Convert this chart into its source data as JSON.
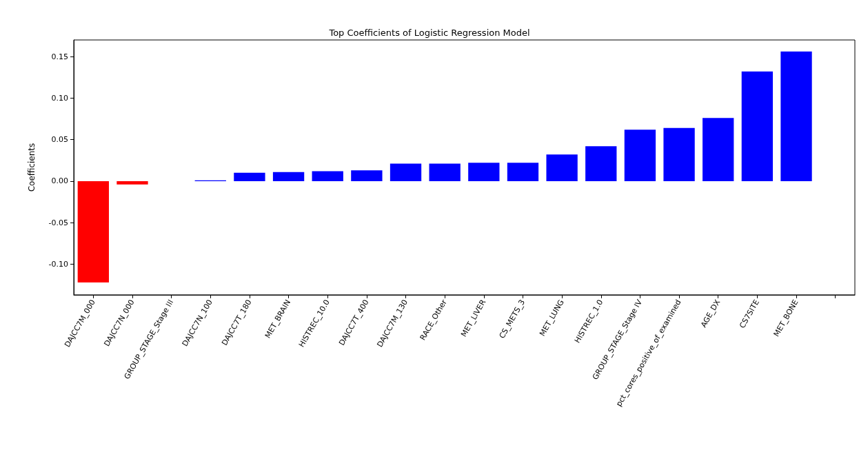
{
  "chart_data": {
    "type": "bar",
    "title": "Top Coefficients of Logistic Regression Model",
    "ylabel": "Coefficients",
    "categories": [
      "DAJCC7M_000",
      "DAJCC7N_000",
      "GROUP_STAGE_Stage III",
      "DAJCC7N_100",
      "DAJCC7T_180",
      "MET_BRAIN",
      "HISTREC_10.0",
      "DAJCC7T_400",
      "DAJCC7M_130",
      "RACE_Other",
      "MET_LIVER",
      "CS_METS_3",
      "MET_LUNG",
      "HISTREC_1.0",
      "GROUP_STAGE_Stage IV",
      "pct_cores_positive_of_examined",
      "AGE_DX",
      "CS7SITE",
      "MET_BONE",
      null
    ],
    "values": [
      -0.122,
      -0.004,
      0,
      0.001,
      0.01,
      0.011,
      0.012,
      0.013,
      0.021,
      0.021,
      0.022,
      0.022,
      0.032,
      0.042,
      0.062,
      0.064,
      0.076,
      0.132,
      0.156,
      null
    ],
    "colors": [
      "#ff0000",
      "#ff0000",
      "#0000ff",
      "#0000ff",
      "#0000ff",
      "#0000ff",
      "#0000ff",
      "#0000ff",
      "#0000ff",
      "#0000ff",
      "#0000ff",
      "#0000ff",
      "#0000ff",
      "#0000ff",
      "#0000ff",
      "#0000ff",
      "#0000ff",
      "#0000ff",
      "#0000ff",
      "#0000ff"
    ],
    "ylim": [
      -0.137,
      0.17
    ],
    "yticks": [
      {
        "value": -0.1,
        "label": "-0.10"
      },
      {
        "value": -0.05,
        "label": "-0.05"
      },
      {
        "value": 0,
        "label": "0.00"
      },
      {
        "value": 0.05,
        "label": "0.05"
      },
      {
        "value": 0.1,
        "label": "0.10"
      },
      {
        "value": 0.15,
        "label": "0.15"
      }
    ],
    "grid": false
  }
}
